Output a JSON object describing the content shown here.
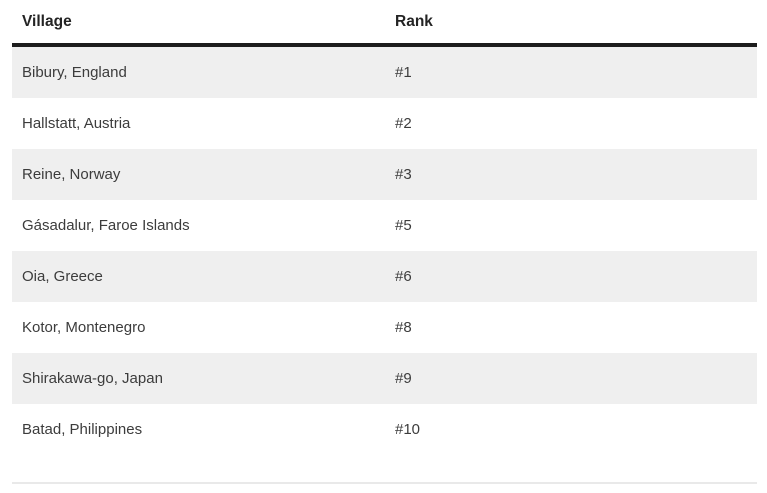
{
  "table": {
    "columns": [
      {
        "label": "Village"
      },
      {
        "label": "Rank"
      }
    ],
    "rows": [
      {
        "village": "Bibury, England",
        "rank": "#1"
      },
      {
        "village": "Hallstatt, Austria",
        "rank": "#2"
      },
      {
        "village": "Reine, Norway",
        "rank": "#3"
      },
      {
        "village": "Gásadalur, Faroe Islands",
        "rank": "#5"
      },
      {
        "village": "Oia, Greece",
        "rank": "#6"
      },
      {
        "village": "Kotor, Montenegro",
        "rank": "#8"
      },
      {
        "village": "Shirakawa-go, Japan",
        "rank": "#9"
      },
      {
        "village": "Batad, Philippines",
        "rank": "#10"
      }
    ]
  },
  "colors": {
    "stripe_row_background": "#efefef",
    "header_border": "#1d1d1d",
    "header_text": "#242424",
    "body_text": "#3c3c3c",
    "bottom_divider": "#e9e9e9",
    "page_background": "#ffffff"
  }
}
